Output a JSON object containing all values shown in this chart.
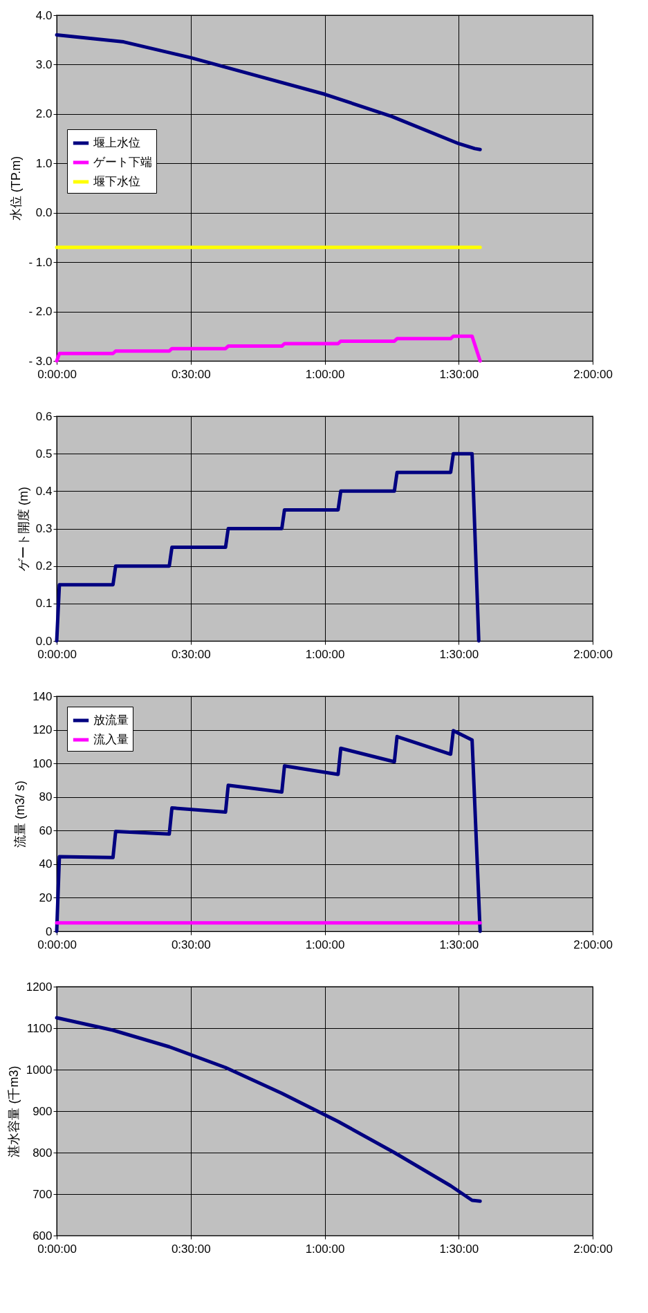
{
  "chart_data": [
    {
      "type": "line",
      "ylabel": "水位 (TP.m)",
      "legend": "left",
      "grid": true,
      "xlim": [
        0,
        2
      ],
      "xticks": [
        {
          "value": 0,
          "label": "0:00:00"
        },
        {
          "value": 0.5,
          "label": "0:30:00"
        },
        {
          "value": 1,
          "label": "1:00:00"
        },
        {
          "value": 1.5,
          "label": "1:30:00"
        },
        {
          "value": 2,
          "label": "2:00:00"
        }
      ],
      "ylim": [
        -3,
        4
      ],
      "yticks": [
        {
          "value": -3,
          "label": "- 3.0"
        },
        {
          "value": -2,
          "label": "- 2.0"
        },
        {
          "value": -1,
          "label": "- 1.0"
        },
        {
          "value": 0,
          "label": "0.0"
        },
        {
          "value": 1,
          "label": "1.0"
        },
        {
          "value": 2,
          "label": "2.0"
        },
        {
          "value": 3,
          "label": "3.0"
        },
        {
          "value": 4,
          "label": "4.0"
        }
      ],
      "series": [
        {
          "name": "堰上水位",
          "color": "#000080",
          "x": [
            0,
            0.25,
            0.5,
            0.75,
            1,
            1.25,
            1.5,
            1.56,
            1.58
          ],
          "values": [
            3.6,
            3.46,
            3.14,
            2.77,
            2.4,
            1.95,
            1.4,
            1.3,
            1.28
          ]
        },
        {
          "name": "ゲート下端",
          "color": "#ff00ff",
          "x": [
            0,
            0.01,
            0.21,
            0.22,
            0.42,
            0.43,
            0.63,
            0.64,
            0.84,
            0.85,
            1.05,
            1.06,
            1.26,
            1.27,
            1.47,
            1.48,
            1.55,
            1.58
          ],
          "values": [
            -3,
            -2.85,
            -2.85,
            -2.8,
            -2.8,
            -2.75,
            -2.75,
            -2.7,
            -2.7,
            -2.65,
            -2.65,
            -2.6,
            -2.6,
            -2.55,
            -2.55,
            -2.5,
            -2.5,
            -3
          ]
        },
        {
          "name": "堰下水位",
          "color": "#ffff00",
          "x": [
            0,
            1.58
          ],
          "values": [
            -0.7,
            -0.7
          ]
        }
      ]
    },
    {
      "type": "line",
      "ylabel": "ゲート開度 (m)",
      "grid": true,
      "xlim": [
        0,
        2
      ],
      "xticks": [
        {
          "value": 0,
          "label": "0:00:00"
        },
        {
          "value": 0.5,
          "label": "0:30:00"
        },
        {
          "value": 1,
          "label": "1:00:00"
        },
        {
          "value": 1.5,
          "label": "1:30:00"
        },
        {
          "value": 2,
          "label": "2:00:00"
        }
      ],
      "ylim": [
        0,
        0.6
      ],
      "yticks": [
        {
          "value": 0,
          "label": "0.0"
        },
        0.1,
        0.2,
        0.3,
        0.4,
        0.5,
        0.6
      ],
      "series": [
        {
          "color": "#000080",
          "x": [
            0,
            0.01,
            0.21,
            0.22,
            0.42,
            0.43,
            0.63,
            0.64,
            0.84,
            0.85,
            1.05,
            1.06,
            1.26,
            1.27,
            1.47,
            1.48,
            1.55,
            1.575
          ],
          "values": [
            0,
            0.15,
            0.15,
            0.2,
            0.2,
            0.25,
            0.25,
            0.3,
            0.3,
            0.35,
            0.35,
            0.4,
            0.4,
            0.45,
            0.45,
            0.5,
            0.5,
            0
          ]
        }
      ]
    },
    {
      "type": "line",
      "ylabel": "流量 (m3/ s)",
      "legend": "top left",
      "grid": true,
      "xlim": [
        0,
        2
      ],
      "xticks": [
        {
          "value": 0,
          "label": "0:00:00"
        },
        {
          "value": 0.5,
          "label": "0:30:00"
        },
        {
          "value": 1,
          "label": "1:00:00"
        },
        {
          "value": 1.5,
          "label": "1:30:00"
        },
        {
          "value": 2,
          "label": "2:00:00"
        }
      ],
      "ylim": [
        0,
        140
      ],
      "yticks": [
        0,
        20,
        40,
        60,
        80,
        100,
        120,
        140
      ],
      "series": [
        {
          "name": "放流量",
          "color": "#000080",
          "x": [
            0,
            0.01,
            0.21,
            0.22,
            0.42,
            0.43,
            0.63,
            0.64,
            0.84,
            0.85,
            1.05,
            1.06,
            1.26,
            1.27,
            1.47,
            1.48,
            1.55,
            1.58
          ],
          "values": [
            0,
            44.5,
            44,
            59.5,
            58,
            73.5,
            71,
            87,
            83,
            98.5,
            93.5,
            109,
            101,
            116,
            105.5,
            119.5,
            114,
            0
          ]
        },
        {
          "name": "流入量",
          "color": "#ff00ff",
          "x": [
            0,
            1.58
          ],
          "values": [
            5,
            5
          ]
        }
      ]
    },
    {
      "type": "line",
      "ylabel": "湛水容量 (千m3)",
      "grid": true,
      "xlim": [
        0,
        2
      ],
      "xticks": [
        {
          "value": 0,
          "label": "0:00:00"
        },
        {
          "value": 0.5,
          "label": "0:30:00"
        },
        {
          "value": 1,
          "label": "1:00:00"
        },
        {
          "value": 1.5,
          "label": "1:30:00"
        },
        {
          "value": 2,
          "label": "2:00:00"
        }
      ],
      "ylim": [
        600,
        1200
      ],
      "yticks": [
        600,
        700,
        800,
        900,
        1000,
        1100,
        1200
      ],
      "series": [
        {
          "color": "#000080",
          "x": [
            0,
            0.21,
            0.42,
            0.63,
            0.84,
            1.05,
            1.26,
            1.47,
            1.55,
            1.58
          ],
          "values": [
            1125,
            1095,
            1055,
            1005,
            943,
            875,
            800,
            720,
            685,
            683
          ]
        }
      ]
    }
  ]
}
